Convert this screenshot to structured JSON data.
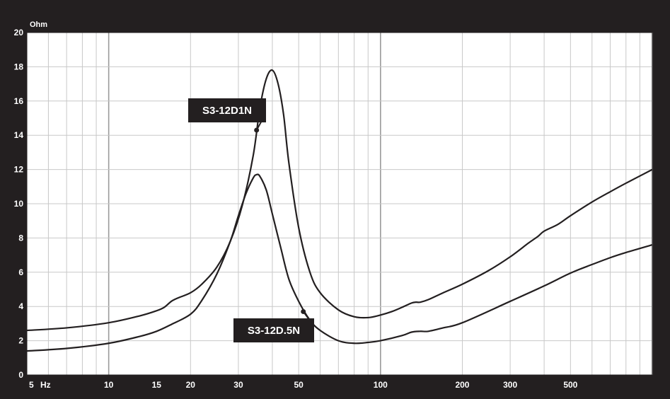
{
  "chart_data": {
    "type": "line",
    "title": "",
    "x_scale": "log",
    "xlim": [
      5,
      1000
    ],
    "ylim": [
      0,
      20
    ],
    "grid": true,
    "y_unit_label": "Ohm",
    "x_unit_label": "Hz",
    "x_ticks": [
      5,
      10,
      15,
      20,
      30,
      50,
      100,
      200,
      300,
      500
    ],
    "y_ticks": [
      0,
      2,
      4,
      6,
      8,
      10,
      12,
      14,
      16,
      18,
      20
    ],
    "series": [
      {
        "name": "S3-12D1N",
        "x": [
          5,
          7,
          10,
          13,
          15,
          16,
          17,
          18,
          20,
          22,
          25,
          28,
          31,
          34,
          36,
          38,
          40,
          42,
          44,
          46,
          50,
          55,
          60,
          70,
          80,
          90,
          100,
          110,
          120,
          130,
          135,
          140,
          150,
          170,
          200,
          250,
          300,
          350,
          380,
          400,
          450,
          500,
          600,
          700,
          800,
          1000
        ],
        "y": [
          2.6,
          2.75,
          3.05,
          3.45,
          3.75,
          3.95,
          4.3,
          4.5,
          4.8,
          5.3,
          6.3,
          7.8,
          9.9,
          12.8,
          15.6,
          17.3,
          17.8,
          17.0,
          15.2,
          12.4,
          8.6,
          6.0,
          4.8,
          3.8,
          3.4,
          3.35,
          3.5,
          3.7,
          3.95,
          4.2,
          4.25,
          4.25,
          4.4,
          4.8,
          5.3,
          6.1,
          6.9,
          7.7,
          8.1,
          8.4,
          8.8,
          9.3,
          10.1,
          10.7,
          11.2,
          12.0
        ]
      },
      {
        "name": "S3-12D.5N",
        "x": [
          5,
          7,
          10,
          13,
          15,
          17,
          20,
          22,
          25,
          28,
          30,
          32,
          34,
          35,
          36,
          38,
          40,
          43,
          46,
          50,
          55,
          60,
          70,
          80,
          90,
          100,
          120,
          130,
          140,
          150,
          170,
          200,
          300,
          400,
          500,
          600,
          700,
          800,
          1000
        ],
        "y": [
          1.4,
          1.55,
          1.85,
          2.25,
          2.55,
          2.95,
          3.55,
          4.35,
          5.9,
          7.8,
          9.3,
          10.6,
          11.5,
          11.7,
          11.6,
          10.8,
          9.4,
          7.4,
          5.6,
          4.3,
          3.2,
          2.6,
          2.0,
          1.85,
          1.9,
          2.0,
          2.3,
          2.5,
          2.55,
          2.55,
          2.75,
          3.05,
          4.3,
          5.2,
          5.95,
          6.45,
          6.85,
          7.15,
          7.6
        ]
      }
    ],
    "annotations": [
      {
        "label": "S3-12D1N",
        "series": 0,
        "x": 35,
        "y": 14.3
      },
      {
        "label": "S3-12D.5N",
        "series": 1,
        "x": 52,
        "y": 3.7
      }
    ],
    "colors": {
      "background": "#231f20",
      "plot": "#ffffff",
      "grid": "#c8c8c8",
      "line": "#231f20"
    }
  }
}
